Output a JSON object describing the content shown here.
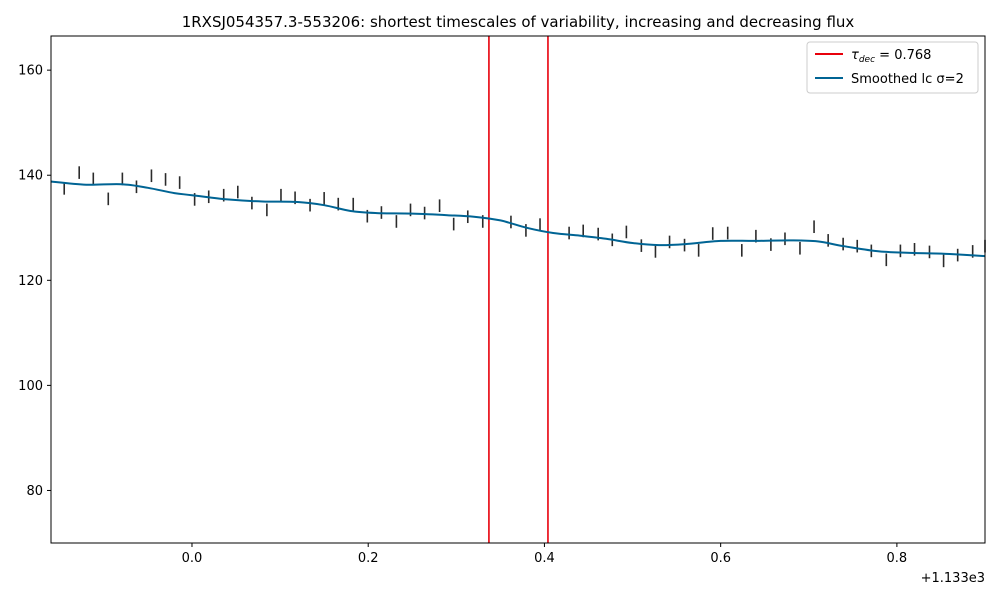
{
  "chart_data": {
    "type": "line",
    "title": "1RXSJ054357.3-553206: shortest timescales of variability, increasing and decreasing flux",
    "xlabel": "",
    "ylabel": "",
    "x_offset_label": "+1.133e3",
    "xlim": [
      1132.84,
      1133.9
    ],
    "ylim": [
      70,
      166.5
    ],
    "x_ticks": [
      0.0,
      0.2,
      0.4,
      0.6,
      0.8
    ],
    "x_tick_labels": [
      "0.0",
      "0.2",
      "0.4",
      "0.6",
      "0.8"
    ],
    "y_ticks": [
      80,
      100,
      120,
      140,
      160
    ],
    "y_tick_labels": [
      "80",
      "100",
      "120",
      "140",
      "160"
    ],
    "grid": false,
    "legend_position": "top-right",
    "legend": [
      {
        "label_main": "τ",
        "label_sub": "dec",
        "label_rest": " = 0.768",
        "color": "#e8000b",
        "kind": "line"
      },
      {
        "label_main": "Smoothed lc σ=2",
        "label_sub": "",
        "label_rest": "",
        "color": "#006494",
        "kind": "line"
      }
    ],
    "vertical_lines": {
      "color": "#e8000b",
      "x": [
        1133.337,
        1133.404
      ]
    },
    "smoothed_series": {
      "name": "Smoothed lc σ=2",
      "color": "#006494",
      "x": [
        1132.84,
        1132.88,
        1132.92,
        1132.95,
        1132.98,
        1133.0,
        1133.04,
        1133.08,
        1133.12,
        1133.15,
        1133.18,
        1133.21,
        1133.25,
        1133.29,
        1133.32,
        1133.35,
        1133.38,
        1133.41,
        1133.44,
        1133.47,
        1133.5,
        1133.53,
        1133.56,
        1133.6,
        1133.64,
        1133.68,
        1133.71,
        1133.74,
        1133.78,
        1133.82,
        1133.86,
        1133.9
      ],
      "y": [
        138.8,
        138.2,
        138.3,
        137.6,
        136.6,
        136.2,
        135.4,
        135.0,
        134.9,
        134.3,
        133.2,
        132.8,
        132.7,
        132.4,
        132.1,
        131.4,
        130.0,
        129.0,
        128.5,
        127.9,
        127.1,
        126.7,
        126.9,
        127.5,
        127.5,
        127.6,
        127.4,
        126.5,
        125.5,
        125.2,
        125.0,
        124.6
      ]
    },
    "errorbar_series": {
      "color": "#2b2b2b",
      "points": [
        [
          1132.855,
          137.5,
          1.2
        ],
        [
          1132.872,
          140.5,
          1.2
        ],
        [
          1132.888,
          139.3,
          1.2
        ],
        [
          1132.905,
          135.5,
          1.2
        ],
        [
          1132.921,
          139.3,
          1.2
        ],
        [
          1132.937,
          137.8,
          1.2
        ],
        [
          1132.954,
          139.9,
          1.2
        ],
        [
          1132.97,
          139.2,
          1.2
        ],
        [
          1132.986,
          138.6,
          1.2
        ],
        [
          1133.003,
          135.4,
          1.2
        ],
        [
          1133.019,
          135.9,
          1.2
        ],
        [
          1133.036,
          136.2,
          1.2
        ],
        [
          1133.052,
          136.8,
          1.2
        ],
        [
          1133.068,
          134.7,
          1.2
        ],
        [
          1133.085,
          133.4,
          1.2
        ],
        [
          1133.101,
          136.2,
          1.2
        ],
        [
          1133.117,
          135.7,
          1.2
        ],
        [
          1133.134,
          134.3,
          1.2
        ],
        [
          1133.15,
          135.6,
          1.2
        ],
        [
          1133.166,
          134.5,
          1.2
        ],
        [
          1133.183,
          134.5,
          1.2
        ],
        [
          1133.199,
          132.2,
          1.2
        ],
        [
          1133.215,
          132.9,
          1.2
        ],
        [
          1133.232,
          131.2,
          1.2
        ],
        [
          1133.248,
          133.4,
          1.2
        ],
        [
          1133.264,
          132.8,
          1.2
        ],
        [
          1133.281,
          134.2,
          1.2
        ],
        [
          1133.297,
          130.7,
          1.2
        ],
        [
          1133.313,
          132.1,
          1.2
        ],
        [
          1133.33,
          131.2,
          1.2
        ],
        [
          1133.362,
          131.1,
          1.2
        ],
        [
          1133.379,
          129.5,
          1.2
        ],
        [
          1133.395,
          130.6,
          1.2
        ],
        [
          1133.428,
          129.0,
          1.2
        ],
        [
          1133.444,
          129.4,
          1.2
        ],
        [
          1133.461,
          128.8,
          1.2
        ],
        [
          1133.477,
          127.7,
          1.2
        ],
        [
          1133.493,
          129.2,
          1.2
        ],
        [
          1133.51,
          126.6,
          1.2
        ],
        [
          1133.526,
          125.5,
          1.2
        ],
        [
          1133.542,
          127.3,
          1.2
        ],
        [
          1133.559,
          126.7,
          1.2
        ],
        [
          1133.575,
          125.7,
          1.2
        ],
        [
          1133.591,
          128.9,
          1.2
        ],
        [
          1133.608,
          129.0,
          1.2
        ],
        [
          1133.624,
          125.7,
          1.2
        ],
        [
          1133.64,
          128.4,
          1.2
        ],
        [
          1133.657,
          126.8,
          1.2
        ],
        [
          1133.673,
          127.9,
          1.2
        ],
        [
          1133.69,
          126.1,
          1.2
        ],
        [
          1133.706,
          130.2,
          1.2
        ],
        [
          1133.722,
          127.6,
          1.2
        ],
        [
          1133.739,
          126.9,
          1.2
        ],
        [
          1133.755,
          126.5,
          1.2
        ],
        [
          1133.771,
          125.6,
          1.2
        ],
        [
          1133.788,
          123.9,
          1.2
        ],
        [
          1133.804,
          125.6,
          1.2
        ],
        [
          1133.82,
          125.9,
          1.2
        ],
        [
          1133.837,
          125.4,
          1.2
        ],
        [
          1133.853,
          123.7,
          1.2
        ],
        [
          1133.869,
          124.8,
          1.2
        ],
        [
          1133.886,
          125.5,
          1.2
        ],
        [
          1133.9,
          126.5,
          1.2
        ]
      ]
    }
  }
}
